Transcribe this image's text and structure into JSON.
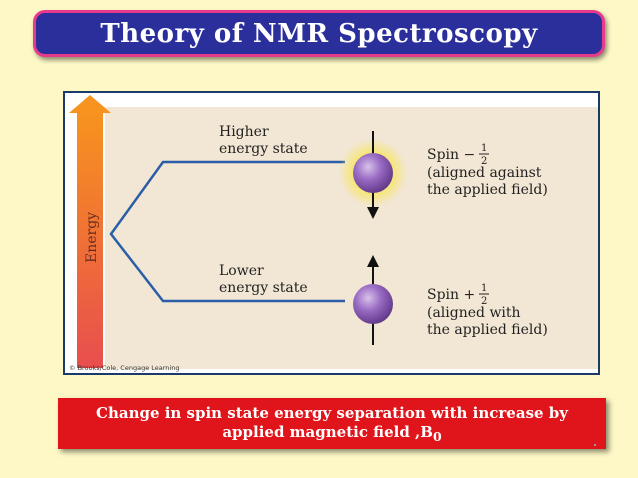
{
  "slide": {
    "title": "Theory of NMR Spectroscopy",
    "caption_main": "Change in spin state energy separation with increase by applied magnetic field ,B",
    "caption_subscript": "0"
  },
  "figure": {
    "energy_axis_label": "Energy",
    "higher_state_line1": "Higher",
    "higher_state_line2": "energy state",
    "lower_state_line1": "Lower",
    "lower_state_line2": "energy state",
    "spin_minus_label": "Spin −",
    "spin_minus_desc1": "(aligned against",
    "spin_minus_desc2": "the applied field)",
    "spin_plus_label": "Spin +",
    "spin_plus_desc1": "(aligned with",
    "spin_plus_desc2": "the applied field)",
    "fraction_num": "1",
    "fraction_den": "2",
    "credit": "© Brooks/Cole, Cengage Learning",
    "colors": {
      "panel": "#f2e6d4",
      "level_line": "#2a5fa8",
      "sphere": "#8e5cb8",
      "glow": "#f6e66a",
      "arrow_top": "#f7931e",
      "arrow_bottom": "#e84e4e"
    }
  }
}
